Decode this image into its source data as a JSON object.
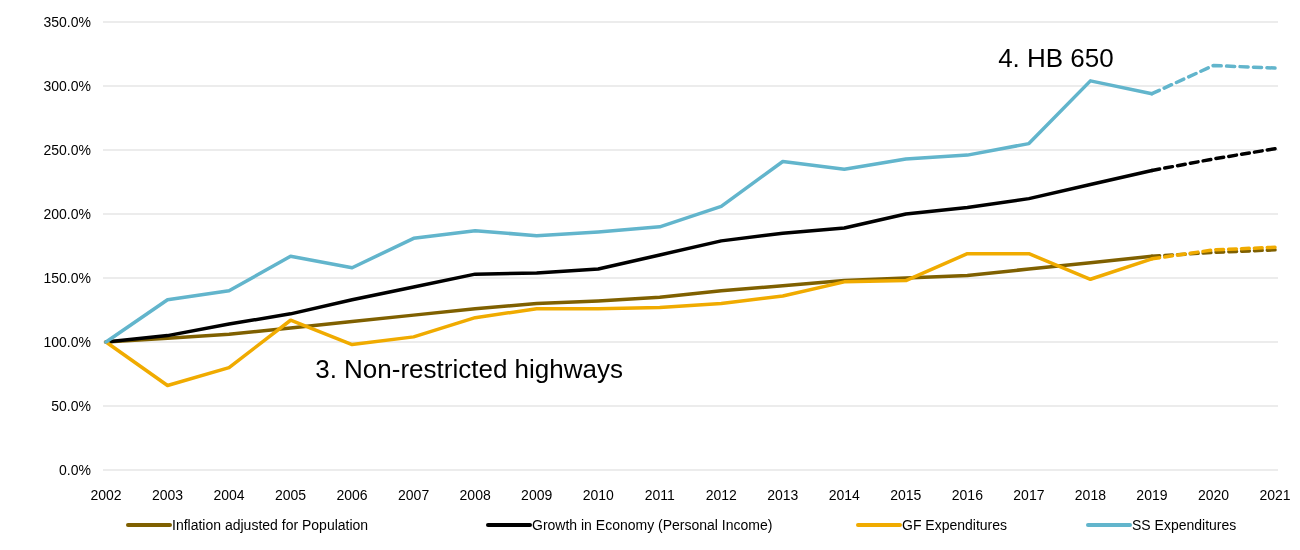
{
  "chart_data": {
    "type": "line",
    "categories": [
      "2002",
      "2003",
      "2004",
      "2005",
      "2006",
      "2007",
      "2008",
      "2009",
      "2010",
      "2011",
      "2012",
      "2013",
      "2014",
      "2015",
      "2016",
      "2017",
      "2018",
      "2019",
      "2020",
      "2021"
    ],
    "series": [
      {
        "name": "Inflation adjusted for Population",
        "color": "#7f6000",
        "values": [
          100,
          103,
          106,
          111,
          116,
          121,
          126,
          130,
          132,
          135,
          140,
          144,
          148,
          150,
          152,
          157,
          162,
          167,
          null,
          null
        ]
      },
      {
        "name": "Growth in Economy (Personal Income)",
        "color": "#000000",
        "values": [
          100,
          105,
          114,
          122,
          133,
          143,
          153,
          154,
          157,
          168,
          179,
          185,
          189,
          200,
          205,
          212,
          223,
          234,
          null,
          null
        ]
      },
      {
        "name": "GF Expenditures",
        "color": "#f0ab00",
        "values": [
          100,
          66,
          80,
          117,
          98,
          104,
          119,
          126,
          126,
          127,
          130,
          136,
          147,
          148,
          169,
          169,
          149,
          165,
          null,
          null
        ]
      },
      {
        "name": "SS Expenditures",
        "color": "#62b5cc",
        "values": [
          100,
          133,
          140,
          167,
          158,
          181,
          187,
          183,
          186,
          190,
          206,
          241,
          235,
          243,
          246,
          255,
          304,
          294,
          null,
          null
        ]
      },
      {
        "color": "#7f6000",
        "line_style": "dashed",
        "values": [
          null,
          null,
          null,
          null,
          null,
          null,
          null,
          null,
          null,
          null,
          null,
          null,
          null,
          null,
          null,
          null,
          null,
          167,
          170,
          172
        ]
      },
      {
        "color": "#000000",
        "line_style": "dashed",
        "values": [
          null,
          null,
          null,
          null,
          null,
          null,
          null,
          null,
          null,
          null,
          null,
          null,
          null,
          null,
          null,
          null,
          null,
          234,
          243,
          251
        ]
      },
      {
        "color": "#f0ab00",
        "line_style": "dashed",
        "values": [
          null,
          null,
          null,
          null,
          null,
          null,
          null,
          null,
          null,
          null,
          null,
          null,
          null,
          null,
          null,
          null,
          null,
          165,
          172,
          174
        ]
      },
      {
        "color": "#62b5cc",
        "line_style": "dashed",
        "values": [
          null,
          null,
          null,
          null,
          null,
          null,
          null,
          null,
          null,
          null,
          null,
          null,
          null,
          null,
          null,
          null,
          null,
          294,
          316,
          314
        ]
      }
    ],
    "ylim": [
      0,
      350
    ],
    "yticks": [
      {
        "value": 0,
        "label": "0.0%"
      },
      {
        "value": 50,
        "label": "50.0%"
      },
      {
        "value": 100,
        "label": "100.0%"
      },
      {
        "value": 150,
        "label": "150.0%"
      },
      {
        "value": 200,
        "label": "200.0%"
      },
      {
        "value": 250,
        "label": "250.0%"
      },
      {
        "value": 300,
        "label": "300.0%"
      },
      {
        "value": 350,
        "label": "350.0%"
      }
    ],
    "grid": "y",
    "legend": "bottom",
    "line_style": "solid",
    "marker": "none",
    "annotations": [
      "3. Non-restricted highways",
      "4. HB 650"
    ]
  }
}
